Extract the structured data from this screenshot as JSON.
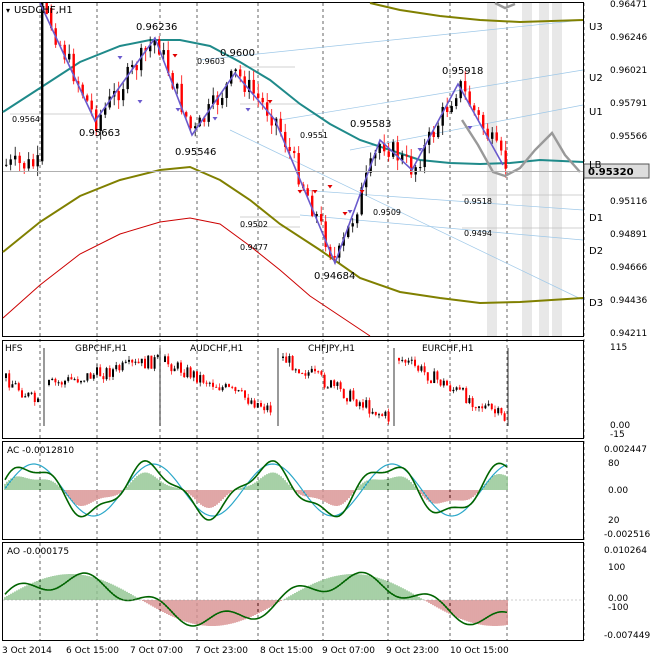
{
  "window": {
    "title": "USDCHF,H1"
  },
  "colors": {
    "background": "#ffffff",
    "frame": "#000000",
    "bull_candle": "#000000",
    "bear_candle": "#ff0000",
    "zigzag": "#6a5acd",
    "teal_ma": "#1f8a8a",
    "olive_band": "#808000",
    "red_band": "#cc0000",
    "forecast": "#999999",
    "fan_line": "#9ec8e8",
    "price_tag_bg": "#dddddd",
    "histogram_up": "#228b22",
    "histogram_down": "#b22222",
    "indicator_line": "#006400",
    "signal_line": "#2aa7c9",
    "future_bar": "#d9d9d9"
  },
  "price_axis": {
    "ticks": [
      "0.96471",
      "0.96246",
      "0.96021",
      "0.95791",
      "0.95566",
      "0.95320",
      "0.95116",
      "0.94891",
      "0.94666",
      "0.94436",
      "0.94211"
    ],
    "current_price": "0.95320"
  },
  "level_labels": {
    "u3": "U3",
    "u2": "U2",
    "u1": "U1",
    "lb": "LB",
    "d1": "D1",
    "d2": "D2",
    "d3": "D3"
  },
  "price_annotations": {
    "p_9564": "0.9564",
    "p_95663": "0.95663",
    "p_96236": "0.96236",
    "p_9603": "0.9603",
    "p_9600": "0.9600",
    "p_95546": "0.95546",
    "p_9551": "0.9551",
    "p_9502": "0.9502",
    "p_9477": "0.9477",
    "p_94684": "0.94684",
    "p_95583": "0.95583",
    "p_9509": "0.9509",
    "p_95918": "0.95918",
    "p_9518": "0.9518",
    "p_9494": "0.9494"
  },
  "cross_panel": {
    "label": "HFS",
    "symbols": [
      "GBPCHF,H1",
      "AUDCHF,H1",
      "CHFJPY,H1",
      "EURCHF,H1"
    ],
    "axis_ticks": [
      "115",
      "0.00",
      "-15"
    ]
  },
  "ac_panel": {
    "label": "AC -0.0012810",
    "axis_ticks": [
      "0.002447",
      "80",
      "0.00",
      "20",
      "-0.002516"
    ]
  },
  "ao_panel": {
    "label": "AO -0.000175",
    "axis_ticks": [
      "0.010264",
      "100",
      "0.00",
      "-100",
      "-0.007449"
    ]
  },
  "time_axis": {
    "labels": [
      "3 Oct 2014",
      "6 Oct 15:00",
      "7 Oct 07:00",
      "7 Oct 23:00",
      "8 Oct 15:00",
      "9 Oct 07:00",
      "9 Oct 23:00",
      "10 Oct 15:00"
    ]
  },
  "chart_data": {
    "type": "candlestick",
    "symbol": "USDCHF,H1",
    "y_range": [
      0.942,
      0.965
    ],
    "current_price": 0.9532,
    "zigzag_pivots": [
      {
        "label": "0.95663",
        "value": 0.95663
      },
      {
        "label": "0.96236",
        "value": 0.96236
      },
      {
        "label": "0.95546",
        "value": 0.95546
      },
      {
        "label": "0.9600",
        "value": 0.96
      },
      {
        "label": "0.94684",
        "value": 0.94684
      },
      {
        "label": "0.95583",
        "value": 0.95583
      },
      {
        "label": "0.95918",
        "value": 0.95918
      }
    ],
    "levels": [
      {
        "name": "U3",
        "value": 0.9637
      },
      {
        "name": "U2",
        "value": 0.96
      },
      {
        "name": "U1",
        "value": 0.9575
      },
      {
        "name": "LB",
        "value": 0.9538
      },
      {
        "name": "D1",
        "value": 0.9509
      },
      {
        "name": "D2",
        "value": 0.9475
      },
      {
        "name": "D3",
        "value": 0.9442
      }
    ],
    "panels": [
      "HFS",
      "AC",
      "AO"
    ],
    "ac_value": -0.001281,
    "ao_value": -0.000175
  }
}
